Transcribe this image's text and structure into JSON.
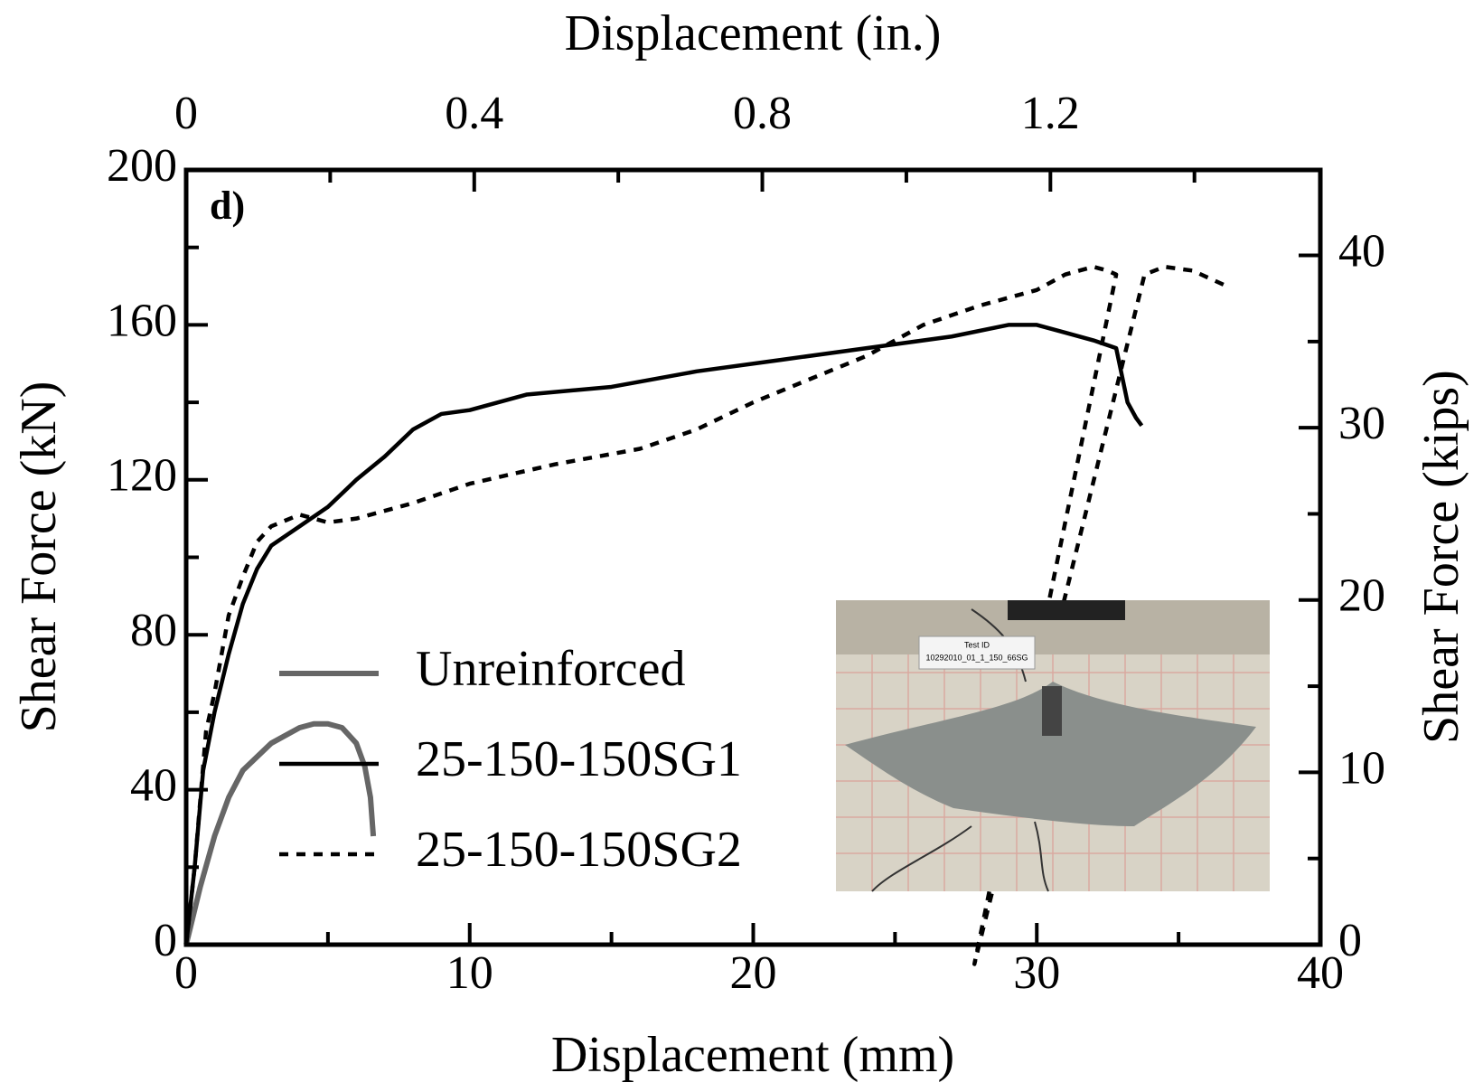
{
  "chart_data": {
    "type": "line",
    "panel_label": "d)",
    "xlabel": "Displacement (mm)",
    "ylabel": "Shear Force (kN)",
    "x2label": "Displacement (in.)",
    "y2label": "Shear Force (kips)",
    "xlim": [
      0,
      40
    ],
    "xticks": [
      0,
      10,
      20,
      30,
      40
    ],
    "xminorticks": [
      5,
      15,
      25,
      35
    ],
    "ylim": [
      0,
      200
    ],
    "yticks": [
      0,
      40,
      80,
      120,
      160,
      200
    ],
    "yminorticks": [
      20,
      60,
      100,
      140,
      180
    ],
    "x2lim": [
      0,
      1.5748
    ],
    "x2ticks": [
      0,
      0.4,
      0.8,
      1.2
    ],
    "x2minorticks": [
      0.2,
      0.6,
      1.0,
      1.4
    ],
    "y2lim": [
      0,
      44.96
    ],
    "y2ticks": [
      0,
      10,
      20,
      30,
      40
    ],
    "y2minorticks": [
      5,
      15,
      25,
      35
    ],
    "series": [
      {
        "name": "Unreinforced",
        "color": "#666666",
        "dash": "solid",
        "x": [
          0,
          0.5,
          1,
          1.5,
          2,
          3,
          4,
          4.5,
          5,
          5.5,
          6,
          6.3,
          6.5,
          6.6
        ],
        "values": [
          0,
          15,
          28,
          38,
          45,
          52,
          56,
          57,
          57,
          56,
          52,
          46,
          38,
          28
        ]
      },
      {
        "name": "25-150-150SG1",
        "color": "#000000",
        "dash": "solid",
        "x": [
          0,
          0.3,
          0.6,
          1,
          1.5,
          2,
          2.5,
          3,
          4,
          5,
          6,
          7,
          8,
          9,
          10,
          12,
          15,
          18,
          21,
          24,
          27,
          29,
          30,
          31,
          32,
          32.8,
          33.2,
          33.5,
          33.7
        ],
        "values": [
          0,
          20,
          45,
          60,
          75,
          88,
          97,
          103,
          108,
          113,
          120,
          126,
          133,
          137,
          138,
          142,
          144,
          148,
          151,
          154,
          157,
          160,
          160,
          158,
          156,
          154,
          140,
          136,
          134
        ]
      },
      {
        "name": "25-150-150SG2",
        "color": "#000000",
        "dash": "dotted",
        "x": [
          0,
          0.3,
          0.7,
          1,
          1.5,
          2,
          2.5,
          3,
          4,
          5,
          6,
          8,
          10,
          13,
          16,
          18,
          20,
          22,
          24,
          26,
          28,
          30,
          31,
          32,
          32.5,
          32.8,
          27.8,
          33.8,
          34.5,
          35.5,
          36.7
        ],
        "values": [
          0,
          20,
          55,
          65,
          85,
          95,
          104,
          108,
          111,
          109,
          110,
          114,
          119,
          124,
          128,
          133,
          140,
          146,
          152,
          160,
          165,
          169,
          173,
          175,
          174,
          173,
          -5,
          173,
          175,
          174,
          170
        ]
      }
    ],
    "photo_text": [
      "Test ID",
      "10292010_01_1_150_66SG"
    ]
  }
}
